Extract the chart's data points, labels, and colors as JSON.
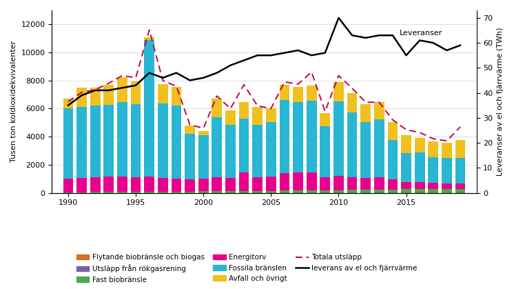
{
  "years": [
    1990,
    1991,
    1992,
    1993,
    1994,
    1995,
    1996,
    1997,
    1998,
    1999,
    2000,
    2001,
    2002,
    2003,
    2004,
    2005,
    2006,
    2007,
    2008,
    2009,
    2010,
    2011,
    2012,
    2013,
    2014,
    2015,
    2016,
    2017,
    2018,
    2019
  ],
  "fast_biobransle": [
    50,
    50,
    60,
    60,
    60,
    70,
    70,
    70,
    80,
    80,
    100,
    100,
    110,
    120,
    130,
    140,
    150,
    160,
    170,
    180,
    190,
    210,
    220,
    230,
    240,
    250,
    260,
    270,
    280,
    290
  ],
  "energitorv": [
    950,
    1000,
    1050,
    1100,
    1100,
    1050,
    1100,
    1000,
    950,
    900,
    900,
    1000,
    950,
    1350,
    1000,
    1000,
    1250,
    1300,
    1300,
    950,
    1000,
    900,
    850,
    900,
    700,
    500,
    500,
    450,
    380,
    380
  ],
  "fossila": [
    5000,
    5050,
    5100,
    5100,
    5300,
    5200,
    9700,
    5300,
    5200,
    3200,
    3100,
    4300,
    3800,
    3800,
    3700,
    3900,
    5200,
    5000,
    5100,
    3600,
    5300,
    4600,
    3950,
    4100,
    2800,
    2100,
    2100,
    1800,
    1800,
    1800
  ],
  "avfall": [
    700,
    1400,
    1300,
    1450,
    1750,
    1600,
    200,
    1350,
    1300,
    600,
    300,
    1300,
    1000,
    1200,
    1300,
    1000,
    1100,
    1100,
    1050,
    950,
    1400,
    1400,
    1300,
    1250,
    1300,
    1250,
    1050,
    1150,
    1100,
    1300
  ],
  "totala_utslapp": [
    6500,
    7150,
    7350,
    7800,
    8350,
    8200,
    11600,
    8000,
    7600,
    4850,
    4600,
    6900,
    6000,
    7700,
    6200,
    6000,
    7900,
    7750,
    8600,
    5800,
    8350,
    7450,
    6450,
    6450,
    5200,
    4500,
    4300,
    3850,
    3700,
    4700
  ],
  "leveranser": [
    35,
    39,
    41,
    41,
    42,
    43,
    48,
    46,
    48,
    45,
    46,
    48,
    51,
    53,
    55,
    55,
    56,
    57,
    55,
    56,
    70,
    63,
    62,
    63,
    63,
    55,
    61,
    60,
    57,
    59
  ],
  "ylabel_left": "Tusen ton koldioxidekvivalenter",
  "ylabel_right": "Leveranser av el och fjärrvärme (TWh)",
  "leveranser_label": "Leveranser",
  "color_flytande": "#D4701E",
  "color_rokgas": "#7B5EA7",
  "color_fast": "#4EA84C",
  "color_energitorv": "#E8008C",
  "color_fossila": "#29B5D4",
  "color_avfall": "#F0C020",
  "color_totala": "#C0004B",
  "color_leverans": "#000000",
  "ylim_left": [
    0,
    13000
  ],
  "ylim_right": [
    0,
    73
  ],
  "background_color": "#ffffff"
}
